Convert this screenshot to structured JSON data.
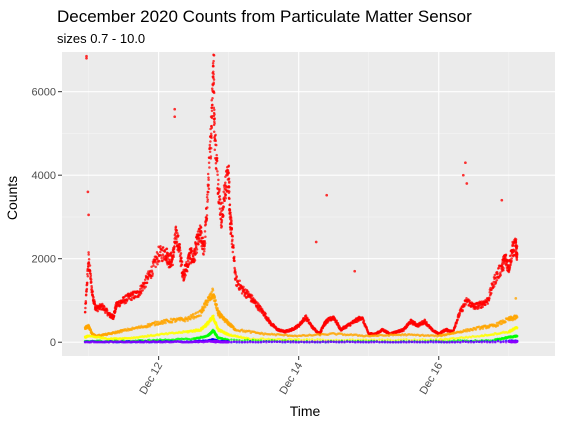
{
  "chart_data": {
    "type": "scatter",
    "title": "December 2020 Counts from Particulate Matter Sensor",
    "subtitle": "sizes 0.7 - 10.0",
    "xlabel": "Time",
    "ylabel": "Counts",
    "x_unit": "days",
    "xlim": [
      10.62,
      17.66
    ],
    "ylim": [
      -330,
      6950
    ],
    "x_ticks": [
      {
        "value": 12,
        "label": "Dec 12"
      },
      {
        "value": 14,
        "label": "Dec 14"
      },
      {
        "value": 16,
        "label": "Dec 16"
      }
    ],
    "x_minor_ticks": [
      11,
      13,
      15,
      17
    ],
    "y_ticks": [
      0,
      2000,
      4000,
      6000
    ],
    "y_minor_ticks": [
      1000,
      3000,
      5000
    ],
    "grid": true,
    "legend": "none",
    "colors": {
      "panel_bg": "#ebebeb",
      "grid_major": "#ffffff",
      "grid_minor": "#f5f5f5"
    },
    "series": [
      {
        "color": "#ff0000",
        "points": [
          [
            10.95,
            700
          ],
          [
            11.0,
            2000
          ],
          [
            11.05,
            1200
          ],
          [
            11.1,
            800
          ],
          [
            11.2,
            850
          ],
          [
            11.3,
            650
          ],
          [
            11.35,
            600
          ],
          [
            11.4,
            900
          ],
          [
            11.5,
            1000
          ],
          [
            11.6,
            1100
          ],
          [
            11.7,
            1150
          ],
          [
            11.8,
            1400
          ],
          [
            11.9,
            1700
          ],
          [
            12.0,
            2100
          ],
          [
            12.1,
            2150
          ],
          [
            12.15,
            1950
          ],
          [
            12.2,
            2000
          ],
          [
            12.25,
            2600
          ],
          [
            12.3,
            2200
          ],
          [
            12.35,
            1600
          ],
          [
            12.4,
            1800
          ],
          [
            12.45,
            2100
          ],
          [
            12.5,
            2000
          ],
          [
            12.55,
            2400
          ],
          [
            12.6,
            2600
          ],
          [
            12.65,
            2200
          ],
          [
            12.7,
            3500
          ],
          [
            12.75,
            5000
          ],
          [
            12.78,
            6700
          ],
          [
            12.8,
            5000
          ],
          [
            12.85,
            3800
          ],
          [
            12.9,
            2900
          ],
          [
            12.95,
            3700
          ],
          [
            13.0,
            4000
          ],
          [
            13.02,
            3000
          ],
          [
            13.05,
            2500
          ],
          [
            13.1,
            1500
          ],
          [
            13.2,
            1250
          ],
          [
            13.3,
            1100
          ],
          [
            13.4,
            900
          ],
          [
            13.5,
            700
          ],
          [
            13.6,
            450
          ],
          [
            13.7,
            300
          ],
          [
            13.8,
            250
          ],
          [
            13.9,
            300
          ],
          [
            14.0,
            400
          ],
          [
            14.1,
            600
          ],
          [
            14.2,
            350
          ],
          [
            14.3,
            200
          ],
          [
            14.35,
            400
          ],
          [
            14.4,
            500
          ],
          [
            14.5,
            600
          ],
          [
            14.6,
            300
          ],
          [
            14.7,
            400
          ],
          [
            14.8,
            500
          ],
          [
            14.9,
            600
          ],
          [
            15.0,
            200
          ],
          [
            15.1,
            200
          ],
          [
            15.2,
            300
          ],
          [
            15.3,
            200
          ],
          [
            15.4,
            250
          ],
          [
            15.5,
            300
          ],
          [
            15.6,
            500
          ],
          [
            15.7,
            400
          ],
          [
            15.8,
            500
          ],
          [
            15.9,
            300
          ],
          [
            16.0,
            200
          ],
          [
            16.1,
            300
          ],
          [
            16.2,
            250
          ],
          [
            16.3,
            700
          ],
          [
            16.4,
            1000
          ],
          [
            16.5,
            850
          ],
          [
            16.6,
            900
          ],
          [
            16.7,
            1000
          ],
          [
            16.8,
            1500
          ],
          [
            16.9,
            1800
          ],
          [
            16.95,
            2000
          ],
          [
            17.0,
            1800
          ],
          [
            17.05,
            2200
          ],
          [
            17.1,
            2300
          ],
          [
            17.12,
            2100
          ]
        ],
        "outliers": [
          [
            10.97,
            6800
          ],
          [
            10.97,
            6850
          ],
          [
            10.99,
            3600
          ],
          [
            11.0,
            3050
          ],
          [
            12.23,
            5580
          ],
          [
            12.23,
            5400
          ],
          [
            12.79,
            6870
          ],
          [
            12.75,
            5400
          ],
          [
            14.4,
            3520
          ],
          [
            14.25,
            2400
          ],
          [
            14.8,
            1700
          ],
          [
            16.35,
            4000
          ],
          [
            16.38,
            4300
          ],
          [
            16.4,
            3800
          ],
          [
            16.9,
            3400
          ]
        ]
      },
      {
        "color": "#ffa500",
        "points": [
          [
            10.95,
            350
          ],
          [
            11.0,
            380
          ],
          [
            11.05,
            200
          ],
          [
            11.1,
            150
          ],
          [
            11.3,
            200
          ],
          [
            11.5,
            280
          ],
          [
            11.8,
            380
          ],
          [
            12.0,
            470
          ],
          [
            12.2,
            520
          ],
          [
            12.4,
            550
          ],
          [
            12.6,
            700
          ],
          [
            12.7,
            1000
          ],
          [
            12.78,
            1150
          ],
          [
            12.85,
            700
          ],
          [
            12.9,
            600
          ],
          [
            13.0,
            450
          ],
          [
            13.1,
            300
          ],
          [
            13.5,
            200
          ],
          [
            14.0,
            150
          ],
          [
            14.5,
            200
          ],
          [
            15.0,
            150
          ],
          [
            15.5,
            180
          ],
          [
            16.0,
            150
          ],
          [
            16.3,
            250
          ],
          [
            16.6,
            350
          ],
          [
            16.8,
            400
          ],
          [
            17.0,
            550
          ],
          [
            17.12,
            600
          ]
        ],
        "outliers": [
          [
            12.77,
            1280
          ],
          [
            17.1,
            1050
          ]
        ]
      },
      {
        "color": "#ffff00",
        "points": [
          [
            10.95,
            120
          ],
          [
            11.0,
            150
          ],
          [
            11.3,
            80
          ],
          [
            11.6,
            100
          ],
          [
            12.0,
            180
          ],
          [
            12.4,
            250
          ],
          [
            12.6,
            300
          ],
          [
            12.7,
            450
          ],
          [
            12.78,
            600
          ],
          [
            12.85,
            300
          ],
          [
            13.0,
            180
          ],
          [
            13.3,
            80
          ],
          [
            14.0,
            60
          ],
          [
            15.0,
            50
          ],
          [
            16.0,
            60
          ],
          [
            16.6,
            150
          ],
          [
            17.0,
            250
          ],
          [
            17.12,
            350
          ]
        ]
      },
      {
        "color": "#00ff00",
        "points": [
          [
            10.95,
            30
          ],
          [
            11.5,
            20
          ],
          [
            12.0,
            50
          ],
          [
            12.5,
            80
          ],
          [
            12.7,
            150
          ],
          [
            12.78,
            280
          ],
          [
            12.85,
            100
          ],
          [
            13.0,
            50
          ],
          [
            14.0,
            20
          ],
          [
            15.0,
            15
          ],
          [
            16.0,
            20
          ],
          [
            16.8,
            50
          ],
          [
            17.0,
            120
          ],
          [
            17.12,
            150
          ]
        ]
      },
      {
        "color": "#0000ff",
        "points": [
          [
            10.95,
            8
          ],
          [
            11.5,
            8
          ],
          [
            12.0,
            10
          ],
          [
            12.5,
            15
          ],
          [
            12.7,
            30
          ],
          [
            12.78,
            60
          ],
          [
            12.85,
            20
          ],
          [
            13.0,
            10
          ],
          [
            14.0,
            6
          ],
          [
            15.0,
            5
          ],
          [
            16.0,
            6
          ],
          [
            17.0,
            25
          ],
          [
            17.12,
            30
          ]
        ]
      },
      {
        "color": "#8b00ff",
        "points": [
          [
            10.95,
            3
          ],
          [
            11.5,
            3
          ],
          [
            12.0,
            4
          ],
          [
            12.5,
            5
          ],
          [
            12.78,
            20
          ],
          [
            12.85,
            8
          ],
          [
            13.0,
            4
          ],
          [
            14.0,
            3
          ],
          [
            15.0,
            2
          ],
          [
            16.0,
            3
          ],
          [
            17.0,
            10
          ],
          [
            17.12,
            15
          ]
        ]
      }
    ]
  }
}
